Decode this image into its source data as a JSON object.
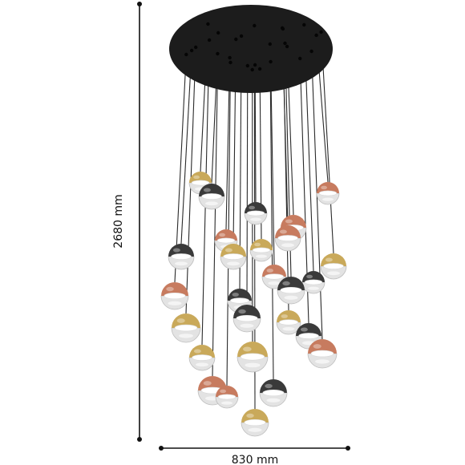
{
  "dimensions": {
    "height_label": "2680 mm",
    "width_label": "830 mm"
  },
  "colors": {
    "canopy": "#1c1c1c",
    "wire": "#2a2a2a",
    "brass": "#c9a95a",
    "copper": "#c77b5f",
    "chrome": "#3a3a3a",
    "glass": "#e3e3e3",
    "dimension_line": "#111111"
  },
  "pendants": [
    {
      "finish": "brass"
    },
    {
      "finish": "chrome"
    },
    {
      "finish": "copper"
    },
    {
      "finish": "chrome"
    },
    {
      "finish": "copper"
    },
    {
      "finish": "copper"
    },
    {
      "finish": "copper"
    },
    {
      "finish": "brass"
    },
    {
      "finish": "brass"
    },
    {
      "finish": "chrome"
    },
    {
      "finish": "brass"
    },
    {
      "finish": "copper"
    },
    {
      "finish": "chrome"
    },
    {
      "finish": "chrome"
    },
    {
      "finish": "copper"
    },
    {
      "finish": "chrome"
    },
    {
      "finish": "chrome"
    },
    {
      "finish": "brass"
    },
    {
      "finish": "brass"
    },
    {
      "finish": "chrome"
    },
    {
      "finish": "brass"
    },
    {
      "finish": "brass"
    },
    {
      "finish": "copper"
    },
    {
      "finish": "copper"
    },
    {
      "finish": "copper"
    },
    {
      "finish": "chrome"
    },
    {
      "finish": "brass"
    }
  ]
}
